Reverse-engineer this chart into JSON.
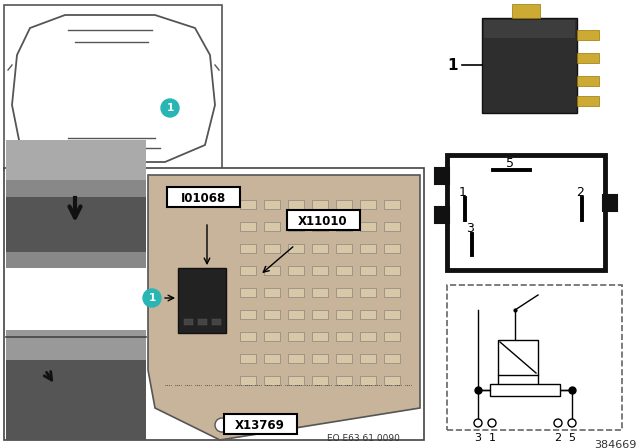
{
  "bg_color": "#ffffff",
  "teal_color": "#2ab5b5",
  "label1": "1",
  "label_I01068": "I01068",
  "label_X11010": "X11010",
  "label_X13769": "X13769",
  "label_EO": "EO E63 61 0090",
  "label_384669": "384669",
  "pin_labels_box": [
    "1",
    "2",
    "3",
    "5"
  ],
  "pin_labels_schematic": [
    "3",
    "1",
    "2",
    "5"
  ],
  "car_outline_color": "#888888",
  "fuse_box_color": "#c8b49a",
  "relay_color": "#2a2a2a",
  "photo_bg_top": "#7a7a7a",
  "photo_bg_bot": "#6a6a6a"
}
